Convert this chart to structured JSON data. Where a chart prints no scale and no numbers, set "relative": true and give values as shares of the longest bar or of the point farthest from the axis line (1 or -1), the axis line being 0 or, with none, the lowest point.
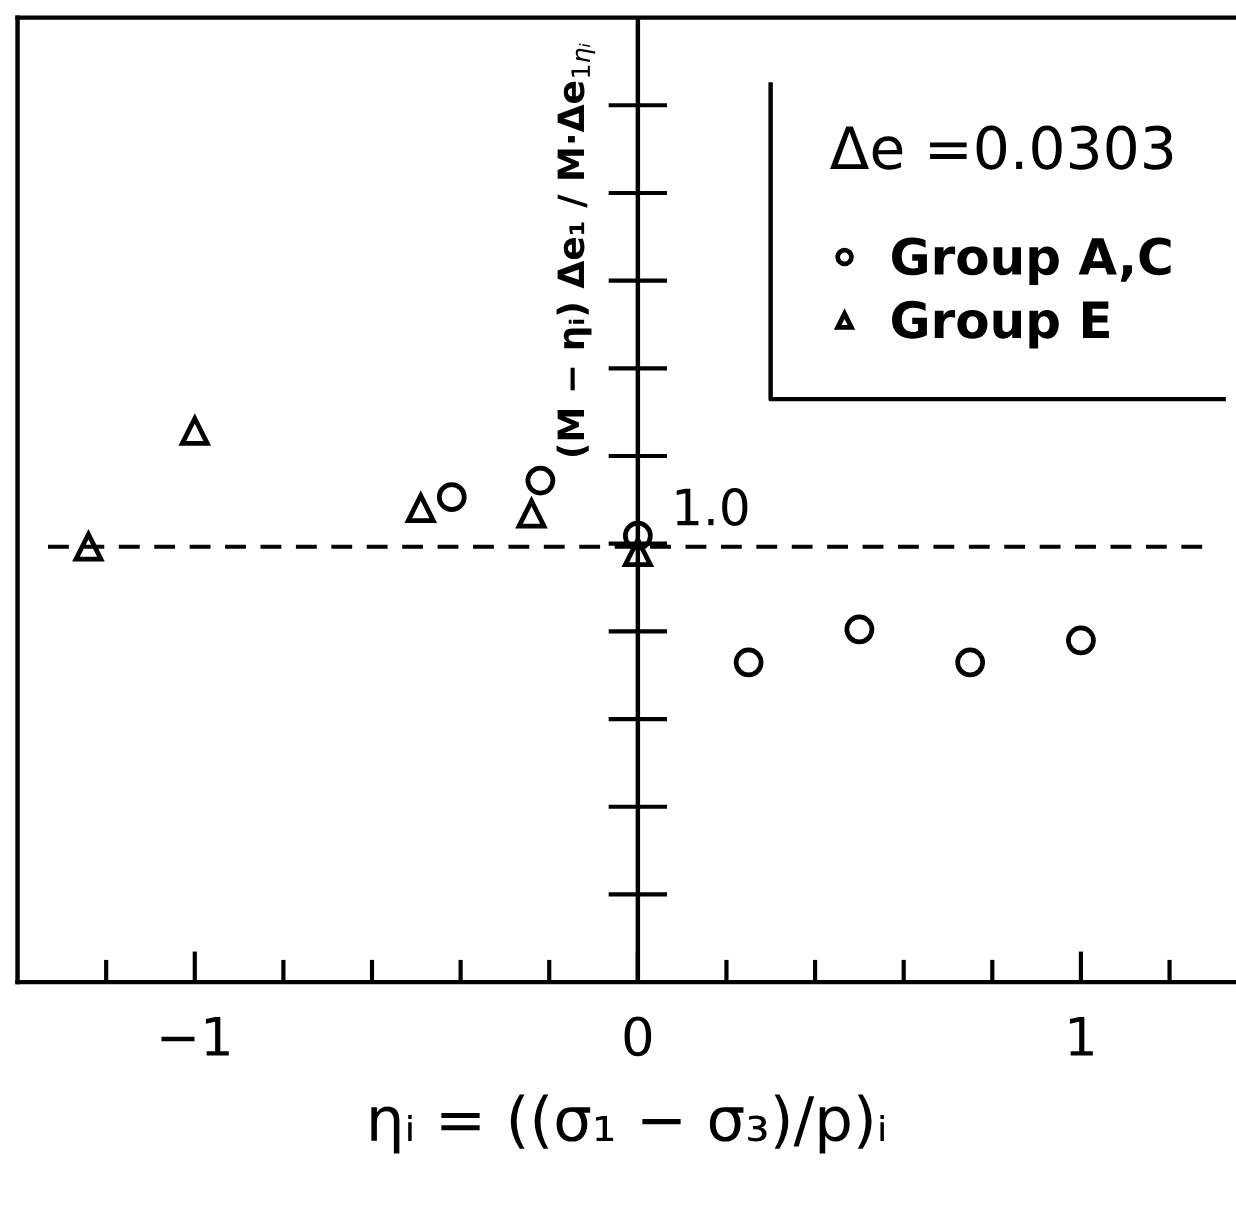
{
  "chart_data": {
    "type": "scatter",
    "relative": true,
    "xlabel": "ηᵢ = ((σ₁ − σ₃)/p)ᵢ",
    "ylabel": "(M − ηᵢ) Δe₁ / M·Δe$_{1ηᵢ}$",
    "legend_title": "Δe =0.0303",
    "legend": "top right",
    "grid": false,
    "xlim": [
      -1.4,
      1.35
    ],
    "xticks": [
      {
        "value": -1.2,
        "label": null
      },
      -1,
      {
        "value": -0.8,
        "label": null
      },
      {
        "value": -0.6,
        "label": null
      },
      {
        "value": -0.4,
        "label": null
      },
      {
        "value": -0.2,
        "label": null
      },
      0,
      {
        "value": 0.2,
        "label": null
      },
      {
        "value": 0.4,
        "label": null
      },
      {
        "value": 0.6,
        "label": null
      },
      {
        "value": 0.8,
        "label": null
      },
      1,
      {
        "value": 1.2,
        "label": null
      }
    ],
    "series": [
      {
        "name": "Group A,C",
        "color": "#000000",
        "marker": "circle",
        "x": [
          -0.42,
          -0.22,
          0,
          0.25,
          0.5,
          0.75,
          1.0
        ],
        "values": [
          0.88,
          0.91,
          0.81,
          0.58,
          0.64,
          0.58,
          0.62
        ]
      },
      {
        "name": "Group E",
        "color": "#000000",
        "marker": "triangle",
        "x": [
          -1.24,
          -1.0,
          -0.49,
          -0.24,
          0
        ],
        "values": [
          0.79,
          1.0,
          0.86,
          0.85,
          0.78
        ]
      }
    ],
    "ref_lines": [
      {
        "axis": "y",
        "value": 0.79,
        "line_style": "dashed",
        "color": "#000000"
      },
      {
        "axis": "x",
        "value": 0,
        "line_style": "solid",
        "color": "#000000"
      }
    ],
    "annotations": [
      "1.0"
    ]
  }
}
